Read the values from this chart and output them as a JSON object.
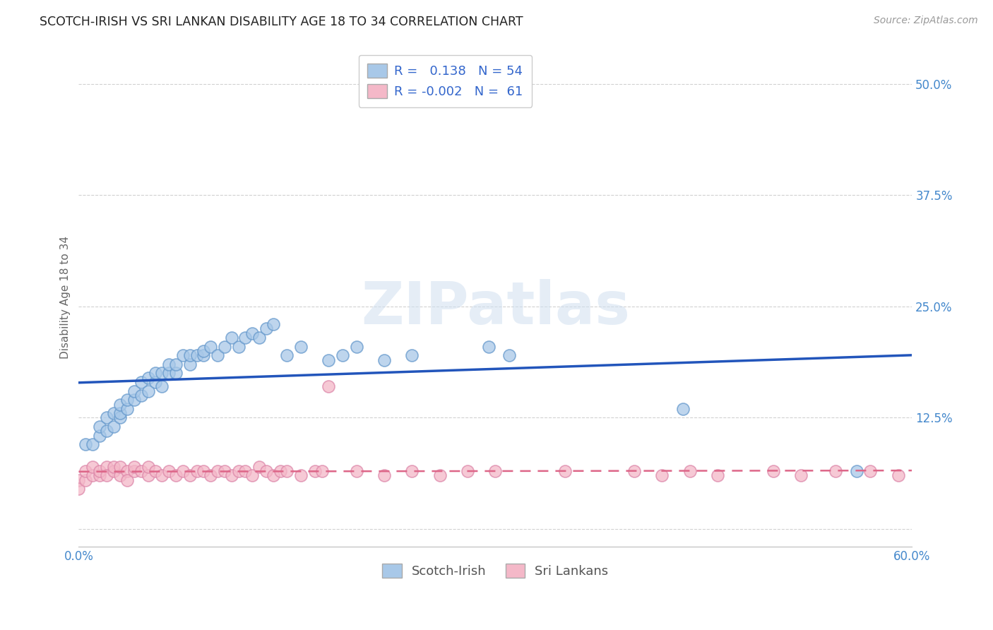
{
  "title": "SCOTCH-IRISH VS SRI LANKAN DISABILITY AGE 18 TO 34 CORRELATION CHART",
  "source": "Source: ZipAtlas.com",
  "ylabel": "Disability Age 18 to 34",
  "xlim": [
    0.0,
    0.6
  ],
  "ylim": [
    -0.02,
    0.54
  ],
  "xticks": [
    0.0,
    0.1,
    0.2,
    0.3,
    0.4,
    0.5,
    0.6
  ],
  "xticklabels": [
    "0.0%",
    "",
    "",
    "",
    "",
    "",
    "60.0%"
  ],
  "yticks": [
    0.0,
    0.125,
    0.25,
    0.375,
    0.5
  ],
  "yticklabels": [
    "",
    "12.5%",
    "25.0%",
    "37.5%",
    "50.0%"
  ],
  "blue_R": 0.138,
  "blue_N": 54,
  "pink_R": -0.002,
  "pink_N": 61,
  "blue_color": "#a8c8e8",
  "pink_color": "#f4b8c8",
  "blue_line_color": "#2255bb",
  "pink_line_color": "#dd6688",
  "grid_color": "#cccccc",
  "background_color": "#ffffff",
  "watermark": "ZIPatlas",
  "scotch_irish_x": [
    0.005,
    0.01,
    0.015,
    0.015,
    0.02,
    0.02,
    0.025,
    0.025,
    0.03,
    0.03,
    0.03,
    0.035,
    0.035,
    0.04,
    0.04,
    0.045,
    0.045,
    0.05,
    0.05,
    0.055,
    0.055,
    0.06,
    0.06,
    0.065,
    0.065,
    0.07,
    0.07,
    0.075,
    0.08,
    0.08,
    0.085,
    0.09,
    0.09,
    0.095,
    0.1,
    0.105,
    0.11,
    0.115,
    0.12,
    0.125,
    0.13,
    0.135,
    0.14,
    0.15,
    0.16,
    0.18,
    0.19,
    0.2,
    0.22,
    0.24,
    0.295,
    0.31,
    0.435,
    0.56
  ],
  "scotch_irish_y": [
    0.095,
    0.095,
    0.105,
    0.115,
    0.11,
    0.125,
    0.115,
    0.13,
    0.125,
    0.13,
    0.14,
    0.135,
    0.145,
    0.145,
    0.155,
    0.15,
    0.165,
    0.155,
    0.17,
    0.165,
    0.175,
    0.16,
    0.175,
    0.175,
    0.185,
    0.175,
    0.185,
    0.195,
    0.185,
    0.195,
    0.195,
    0.195,
    0.2,
    0.205,
    0.195,
    0.205,
    0.215,
    0.205,
    0.215,
    0.22,
    0.215,
    0.225,
    0.23,
    0.195,
    0.205,
    0.19,
    0.195,
    0.205,
    0.19,
    0.195,
    0.205,
    0.195,
    0.135,
    0.065
  ],
  "sri_lankan_x": [
    0.0,
    0.0,
    0.005,
    0.005,
    0.01,
    0.01,
    0.015,
    0.015,
    0.02,
    0.02,
    0.025,
    0.025,
    0.03,
    0.03,
    0.035,
    0.035,
    0.04,
    0.04,
    0.045,
    0.05,
    0.05,
    0.055,
    0.06,
    0.065,
    0.07,
    0.075,
    0.08,
    0.085,
    0.09,
    0.095,
    0.1,
    0.105,
    0.11,
    0.115,
    0.12,
    0.125,
    0.13,
    0.135,
    0.14,
    0.145,
    0.15,
    0.16,
    0.17,
    0.175,
    0.18,
    0.2,
    0.22,
    0.24,
    0.26,
    0.28,
    0.3,
    0.35,
    0.4,
    0.42,
    0.44,
    0.46,
    0.5,
    0.52,
    0.545,
    0.57,
    0.59
  ],
  "sri_lankan_y": [
    0.055,
    0.045,
    0.055,
    0.065,
    0.06,
    0.07,
    0.06,
    0.065,
    0.07,
    0.06,
    0.065,
    0.07,
    0.06,
    0.07,
    0.065,
    0.055,
    0.065,
    0.07,
    0.065,
    0.06,
    0.07,
    0.065,
    0.06,
    0.065,
    0.06,
    0.065,
    0.06,
    0.065,
    0.065,
    0.06,
    0.065,
    0.065,
    0.06,
    0.065,
    0.065,
    0.06,
    0.07,
    0.065,
    0.06,
    0.065,
    0.065,
    0.06,
    0.065,
    0.065,
    0.16,
    0.065,
    0.06,
    0.065,
    0.06,
    0.065,
    0.065,
    0.065,
    0.065,
    0.06,
    0.065,
    0.06,
    0.065,
    0.06,
    0.065,
    0.065,
    0.06
  ]
}
